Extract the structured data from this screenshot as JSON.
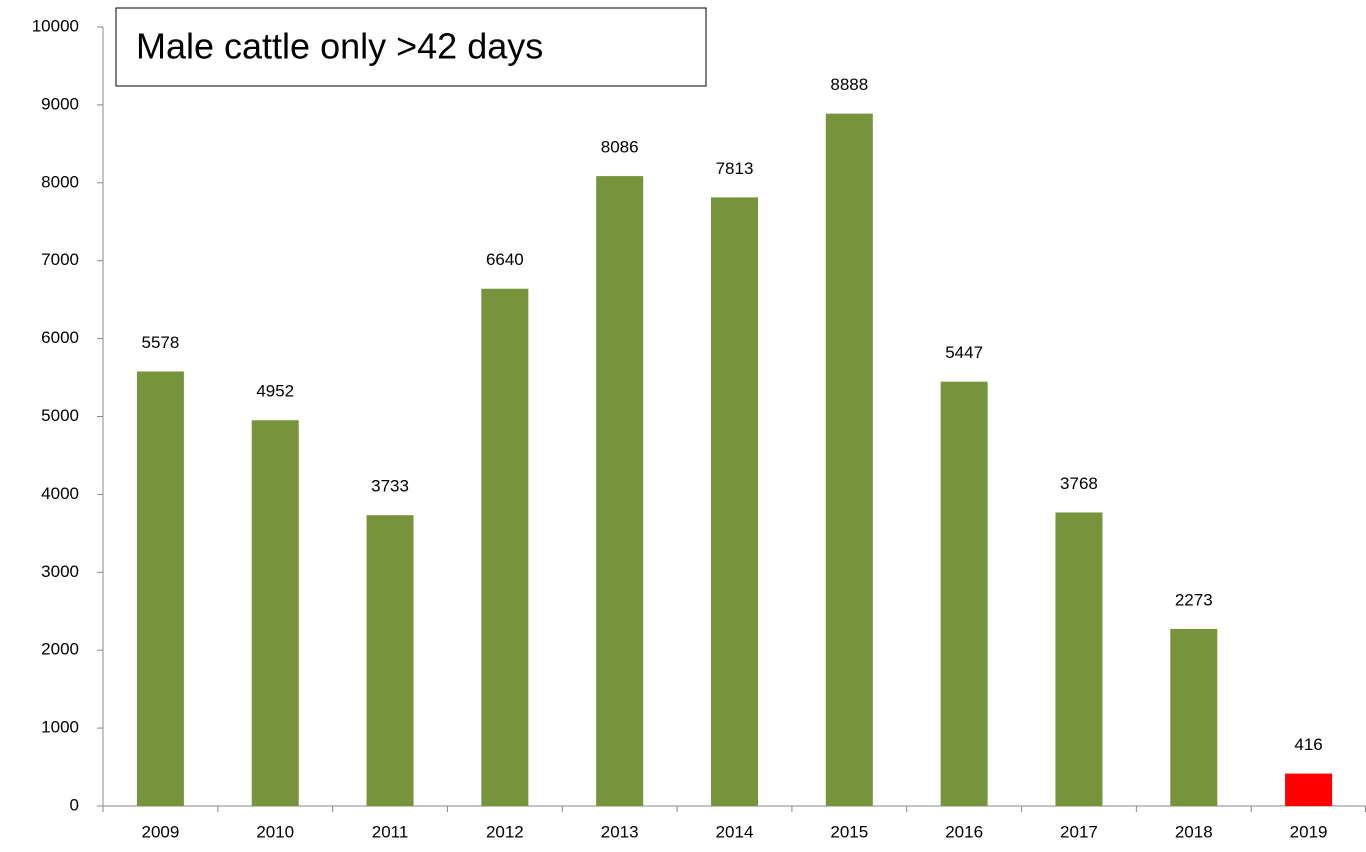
{
  "chart_data": {
    "type": "bar",
    "title": "Male cattle only >42 days",
    "categories": [
      "2009",
      "2010",
      "2011",
      "2012",
      "2013",
      "2014",
      "2015",
      "2016",
      "2017",
      "2018",
      "2019"
    ],
    "values": [
      5578,
      4952,
      3733,
      6640,
      8086,
      7813,
      8888,
      5447,
      3768,
      2273,
      416
    ],
    "colors": [
      "#77933c",
      "#77933c",
      "#77933c",
      "#77933c",
      "#77933c",
      "#77933c",
      "#77933c",
      "#77933c",
      "#77933c",
      "#77933c",
      "#ff0000"
    ],
    "ylim": [
      0,
      10000
    ],
    "yticks": [
      0,
      1000,
      2000,
      3000,
      4000,
      5000,
      6000,
      7000,
      8000,
      9000,
      10000
    ],
    "grid": false
  }
}
